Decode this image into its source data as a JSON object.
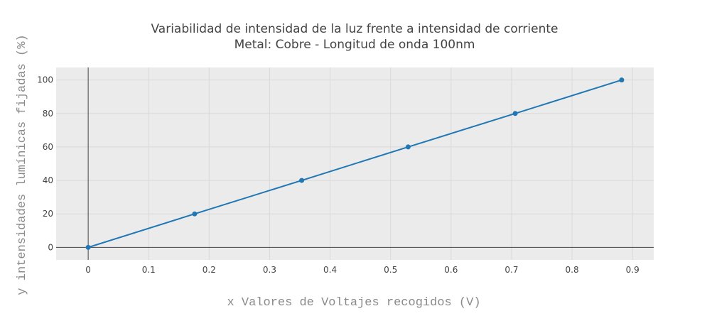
{
  "chart_data": {
    "type": "line",
    "title": "Variabilidad de intensidad de la luz frente a intensidad de corriente",
    "subtitle": "Metal: Cobre - Longitud de onda 100nm",
    "xlabel": "x Valores de Voltajes recogidos (V)",
    "ylabel": "y intensidades lumínicas fijadas (%)",
    "xlim": [
      -0.053,
      0.935
    ],
    "ylim": [
      -7.5,
      107.5
    ],
    "x_ticks": [
      0,
      0.1,
      0.2,
      0.3,
      0.4,
      0.5,
      0.6,
      0.7,
      0.8,
      0.9
    ],
    "x_tick_labels": [
      "0",
      "0.1",
      "0.2",
      "0.3",
      "0.4",
      "0.5",
      "0.6",
      "0.7",
      "0.8",
      "0.9"
    ],
    "y_ticks": [
      0,
      20,
      40,
      60,
      80,
      100
    ],
    "y_tick_labels": [
      "0",
      "20",
      "40",
      "60",
      "80",
      "100"
    ],
    "grid": true,
    "legend": "none",
    "colors": {
      "plot_background": "#ebebeb",
      "grid": "#dadada",
      "zero_line": "#444444",
      "series": "#1f77b4"
    },
    "series": [
      {
        "mode": "lines+markers",
        "x": [
          0,
          0.176,
          0.353,
          0.529,
          0.706,
          0.882
        ],
        "y": [
          0,
          20,
          40,
          60,
          80,
          100
        ]
      }
    ]
  }
}
